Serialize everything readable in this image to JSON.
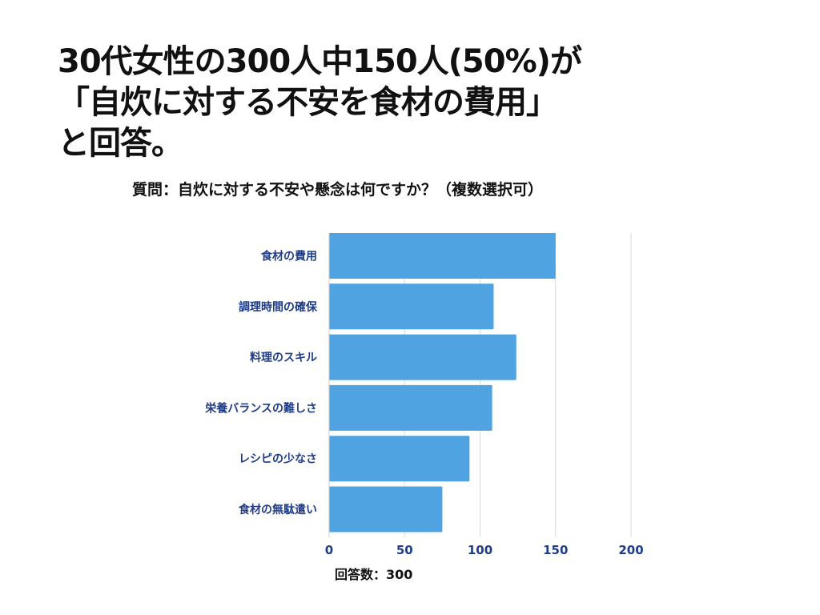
{
  "headline": {
    "line1": "30代女性の300人中150人(50%)が",
    "line2": "「自炊に対する不安を食材の費用」",
    "line3": "と回答。"
  },
  "question": "質問：自炊に対する不安や懸念は何ですか？（複数選択可）",
  "chart_data": {
    "type": "bar",
    "orientation": "horizontal",
    "categories": [
      "食材の費用",
      "調理時間の確保",
      "料理のスキル",
      "栄養バランスの難しさ",
      "レシピの少なさ",
      "食材の無駄遣い"
    ],
    "values": [
      150,
      109,
      124,
      108,
      93,
      75
    ],
    "xlim": [
      0,
      200
    ],
    "xticks": [
      0,
      50,
      100,
      150,
      200
    ],
    "xlabel": "回答数：300",
    "grid": true,
    "bar_color": "#4fa3e0",
    "label_color": "#1f3c88"
  }
}
